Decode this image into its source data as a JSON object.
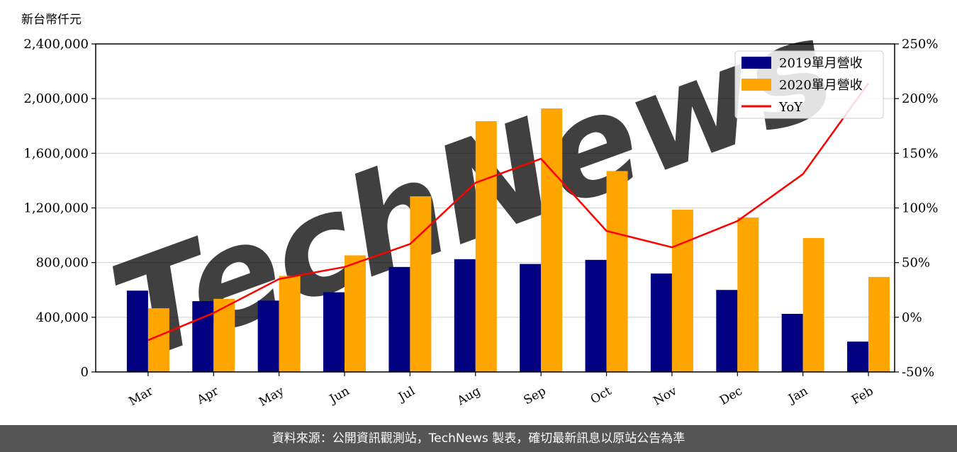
{
  "chart_data": {
    "type": "bar",
    "title": "",
    "ylabel": "新台幣仟元",
    "categories": [
      "Mar",
      "Apr",
      "May",
      "Jun",
      "Jul",
      "Aug",
      "Sep",
      "Oct",
      "Nov",
      "Dec",
      "Jan",
      "Feb"
    ],
    "series": [
      {
        "name": "2019單月營收",
        "type": "bar",
        "color": "#000080",
        "values": [
          595000,
          518000,
          522000,
          583000,
          768000,
          825000,
          790000,
          820000,
          720000,
          600000,
          425000,
          222000
        ]
      },
      {
        "name": "2020單月營收",
        "type": "bar",
        "color": "#ffa500",
        "values": [
          466000,
          535000,
          703000,
          853000,
          1285000,
          1835000,
          1928000,
          1470000,
          1188000,
          1130000,
          980000,
          695000
        ]
      },
      {
        "name": "YoY",
        "type": "line",
        "axis": "right",
        "color": "#ff0000",
        "values": [
          -21,
          4,
          35,
          46,
          67,
          123,
          145,
          79,
          64,
          88,
          131,
          214
        ]
      }
    ],
    "ylim": [
      0,
      2400000
    ],
    "yticks": [
      "0",
      "400,000",
      "800,000",
      "1,200,000",
      "1,600,000",
      "2,000,000",
      "2,400,000"
    ],
    "y2lim": [
      -50,
      250
    ],
    "y2ticks": [
      "-50%",
      "0%",
      "50%",
      "100%",
      "150%",
      "200%",
      "250%"
    ],
    "grid": "horizontal",
    "legend_position": "top-right"
  },
  "watermark": "TechNews",
  "footer": {
    "text": "資料來源：公開資訊觀測站，TechNews 製表，確切最新訊息以原站公告為準"
  }
}
